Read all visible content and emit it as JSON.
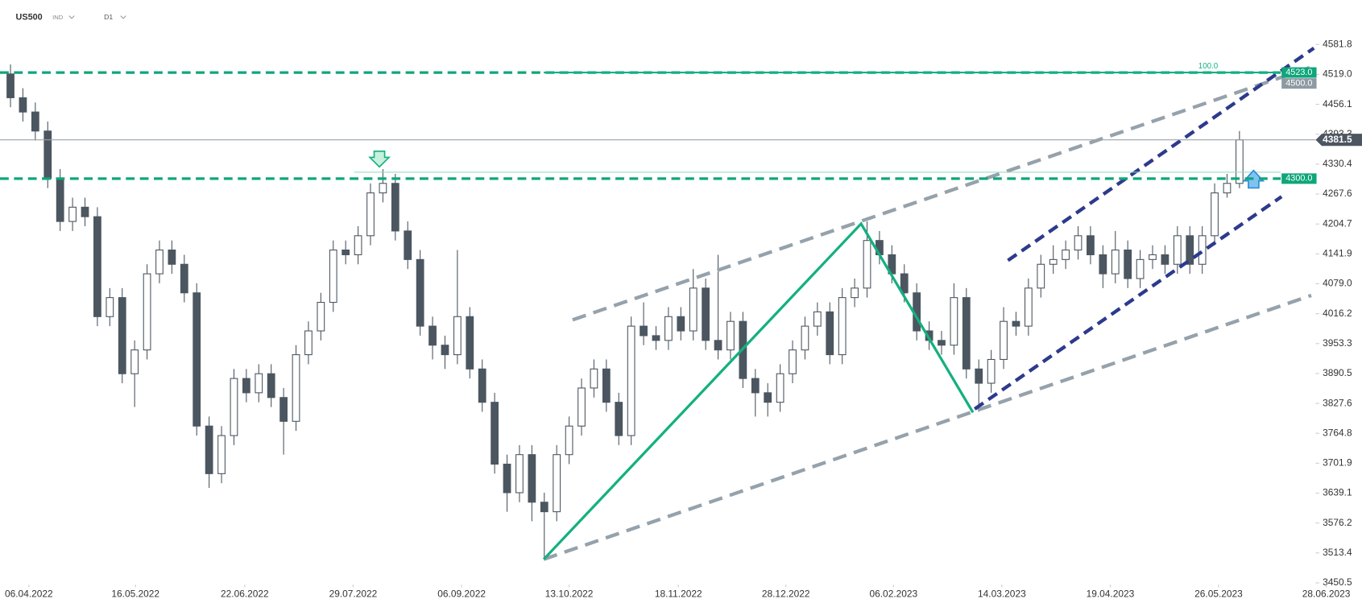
{
  "chart_data": {
    "type": "candlestick",
    "symbol": "US500",
    "market": "IND",
    "interval": "D1",
    "up_color": "#ffffff",
    "down_color": "#4b5660",
    "wick_color": "#4b5660",
    "ylim": [
      3450.5,
      4675.3
    ],
    "yticks": [
      4581.8,
      {
        "value": 4519,
        "label": "4519.0"
      },
      4456.1,
      4393.3,
      4330.4,
      4267.6,
      4204.7,
      4141.9,
      {
        "value": 4079,
        "label": "4079.0"
      },
      4016.2,
      3953.3,
      3890.5,
      3827.6,
      3764.8,
      3701.9,
      3639.1,
      3576.2,
      3513.4,
      3450.5
    ],
    "xlim": [
      -0.845,
      108.87
    ],
    "xticks": [
      {
        "value": 1.48,
        "label": "06.04.2022"
      },
      {
        "value": 10.07,
        "label": "16.05.2022"
      },
      {
        "value": 18.87,
        "label": "22.06.2022"
      },
      {
        "value": 27.6,
        "label": "29.07.2022"
      },
      {
        "value": 36.34,
        "label": "06.09.2022"
      },
      {
        "value": 45,
        "label": "13.10.2022"
      },
      {
        "value": 53.8,
        "label": "18.11.2022"
      },
      {
        "value": 62.46,
        "label": "28.12.2022"
      },
      {
        "value": 71.13,
        "label": "06.02.2023"
      },
      {
        "value": 79.86,
        "label": "14.03.2023"
      },
      {
        "value": 88.59,
        "label": "19.04.2023"
      },
      {
        "value": 97.32,
        "label": "26.05.2023"
      },
      {
        "value": 105.99,
        "label": "28.06.2023"
      }
    ],
    "open": [
      4520,
      4470,
      4440,
      4400,
      4300,
      4210,
      4240,
      4220,
      4010,
      4050,
      3890,
      3940,
      4100,
      4150,
      4120,
      4060,
      3780,
      3680,
      3760,
      3880,
      3850,
      3890,
      3840,
      3790,
      3930,
      3980,
      4040,
      4150,
      4140,
      4180,
      4270,
      4290,
      4190,
      4130,
      3990,
      3950,
      3930,
      4010,
      3900,
      3830,
      3700,
      3640,
      3720,
      3620,
      3600,
      3720,
      3780,
      3860,
      3900,
      3830,
      3760,
      3990,
      3970,
      3960,
      4010,
      3980,
      4070,
      3960,
      3940,
      4000,
      3880,
      3850,
      3830,
      3890,
      3940,
      3990,
      4020,
      3930,
      4050,
      4070,
      4170,
      4140,
      4100,
      4060,
      3980,
      3960,
      3950,
      4050,
      3900,
      3870,
      3920,
      4000,
      3990,
      4070,
      4120,
      4130,
      4150,
      4180,
      4140,
      4100,
      4150,
      4090,
      4130,
      4140,
      4120,
      4180,
      4120,
      4180,
      4270,
      4290
    ],
    "high": [
      4540,
      4490,
      4460,
      4420,
      4320,
      4260,
      4260,
      4240,
      4070,
      4070,
      3960,
      4120,
      4170,
      4170,
      4140,
      4080,
      3800,
      3780,
      3900,
      3900,
      3910,
      3910,
      3860,
      3950,
      4000,
      4060,
      4170,
      4170,
      4200,
      4290,
      4320,
      4310,
      4210,
      4150,
      4010,
      3970,
      4150,
      4030,
      3920,
      3850,
      3720,
      3740,
      3740,
      3640,
      3740,
      3800,
      3880,
      3920,
      3920,
      3850,
      4010,
      4040,
      3990,
      4030,
      4030,
      4110,
      4090,
      4140,
      4020,
      4020,
      3900,
      3870,
      3910,
      3960,
      4010,
      4040,
      4040,
      4070,
      4090,
      4210,
      4190,
      4160,
      4120,
      4080,
      4000,
      3980,
      4080,
      4070,
      3920,
      3940,
      4030,
      4020,
      4090,
      4140,
      4160,
      4170,
      4200,
      4200,
      4160,
      4190,
      4170,
      4150,
      4160,
      4160,
      4200,
      4200,
      4200,
      4290,
      4310,
      4400
    ],
    "low": [
      4450,
      4420,
      4380,
      4280,
      4190,
      4190,
      4200,
      3990,
      3990,
      3870,
      3820,
      3920,
      4080,
      4100,
      4040,
      3760,
      3650,
      3660,
      3740,
      3830,
      3830,
      3820,
      3720,
      3770,
      3910,
      3960,
      4020,
      4120,
      4120,
      4160,
      4250,
      4170,
      4110,
      3970,
      3920,
      3900,
      3910,
      3880,
      3810,
      3680,
      3600,
      3620,
      3580,
      3500,
      3580,
      3700,
      3760,
      3840,
      3810,
      3740,
      3740,
      3950,
      3940,
      3940,
      3960,
      3960,
      3940,
      3920,
      3920,
      3860,
      3800,
      3800,
      3810,
      3870,
      3920,
      3970,
      3910,
      3910,
      4030,
      4050,
      4120,
      4080,
      4040,
      3960,
      3940,
      3930,
      3930,
      3880,
      3810,
      3850,
      3900,
      3970,
      3970,
      4050,
      4100,
      4110,
      4130,
      4120,
      4070,
      4080,
      4070,
      4070,
      4110,
      4100,
      4100,
      4100,
      4100,
      4160,
      4260,
      4280
    ],
    "close": [
      4470,
      4440,
      4400,
      4300,
      4210,
      4240,
      4220,
      4010,
      4050,
      3890,
      3940,
      4100,
      4150,
      4120,
      4060,
      3780,
      3680,
      3760,
      3880,
      3850,
      3890,
      3840,
      3790,
      3930,
      3980,
      4040,
      4150,
      4140,
      4180,
      4270,
      4290,
      4190,
      4130,
      3990,
      3950,
      3930,
      4010,
      3900,
      3830,
      3700,
      3640,
      3720,
      3620,
      3600,
      3720,
      3780,
      3860,
      3900,
      3830,
      3760,
      3990,
      3970,
      3960,
      4010,
      3980,
      4070,
      3960,
      3940,
      4000,
      3880,
      3850,
      3830,
      3890,
      3940,
      3990,
      4020,
      3930,
      4050,
      4070,
      4170,
      4140,
      4100,
      4060,
      3980,
      3960,
      3950,
      4050,
      3900,
      3870,
      3920,
      4000,
      3990,
      4070,
      4120,
      4130,
      4150,
      4180,
      4140,
      4100,
      4150,
      4090,
      4130,
      4140,
      4120,
      4180,
      4120,
      4180,
      4270,
      4290,
      4381.5
    ],
    "last_price": {
      "value": 4381.5,
      "label": "4381.5",
      "color": "#4b5660"
    },
    "levels": [
      {
        "value": 4523,
        "label": "4523.0",
        "color": "#0fa67a",
        "dashed": true
      },
      {
        "value": 4300,
        "label": "4300.0",
        "color": "#0fa67a",
        "dashed": true
      },
      {
        "value": 4500,
        "label": "4500.0",
        "color": "#8e9aa3",
        "dashed": false
      }
    ],
    "fib_label": {
      "value": 100,
      "label": "100.0"
    }
  }
}
